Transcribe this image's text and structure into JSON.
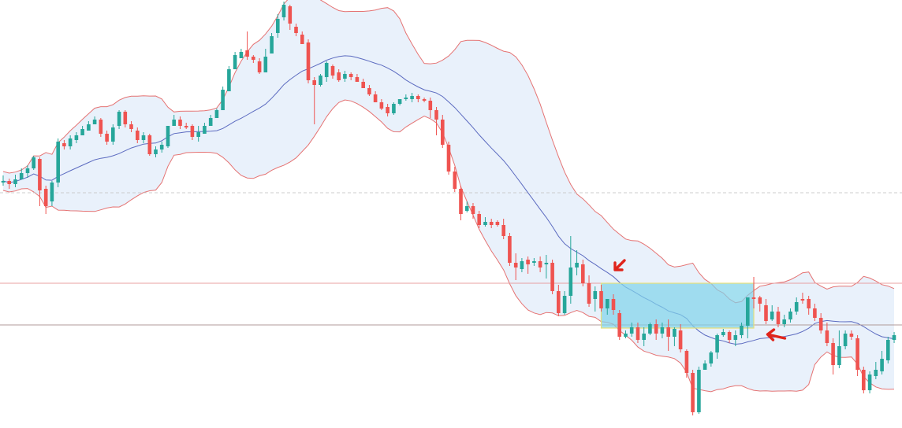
{
  "colors": {
    "bull": "#26a69a",
    "bear": "#ef5350",
    "band_fill": "#e3eefa",
    "band_line": "#e57373",
    "mid_line": "#5c6bc0",
    "zone_fill": "#7fd3ea",
    "zone_border": "#e6e07a",
    "arrow": "#e0241b",
    "hline_gray": "#cccccc",
    "hline_red": "#e8a0a0",
    "hline_dark": "#b09a9a"
  },
  "chart_data": {
    "type": "candlestick",
    "title": "",
    "xlabel": "",
    "ylabel": "",
    "ylim": [
      0,
      544
    ],
    "grid": false,
    "indicator": "bollinger_bands",
    "horizontal_levels": [
      {
        "value": 245,
        "color": "gray"
      },
      {
        "value": 360,
        "color": "red"
      },
      {
        "value": 413,
        "color": "dark"
      }
    ],
    "zone": {
      "x_start_bar": 98,
      "x_end_bar": 123,
      "top": 360,
      "bottom": 417
    },
    "arrows": [
      {
        "bar": 100,
        "value": 345,
        "direction": "down-left"
      },
      {
        "bar": 125,
        "value": 425,
        "direction": "left"
      }
    ],
    "bars": [
      [
        232,
        230,
        223,
        236
      ],
      [
        230,
        234,
        227,
        240
      ],
      [
        234,
        228,
        222,
        238
      ],
      [
        228,
        220,
        214,
        224
      ],
      [
        220,
        214,
        210,
        226
      ],
      [
        214,
        200,
        198,
        216
      ],
      [
        202,
        242,
        200,
        262
      ],
      [
        240,
        262,
        236,
        272
      ],
      [
        256,
        232,
        230,
        262
      ],
      [
        232,
        180,
        176,
        238
      ],
      [
        182,
        186,
        178,
        190
      ],
      [
        186,
        176,
        172,
        190
      ],
      [
        178,
        172,
        168,
        182
      ],
      [
        172,
        164,
        160,
        168
      ],
      [
        166,
        158,
        154,
        162
      ],
      [
        158,
        152,
        148,
        156
      ],
      [
        152,
        170,
        150,
        174
      ],
      [
        170,
        180,
        166,
        184
      ],
      [
        180,
        162,
        158,
        184
      ],
      [
        160,
        142,
        140,
        164
      ],
      [
        142,
        158,
        140,
        162
      ],
      [
        158,
        164,
        154,
        168
      ],
      [
        166,
        178,
        162,
        182
      ],
      [
        178,
        172,
        168,
        182
      ],
      [
        172,
        196,
        170,
        198
      ],
      [
        196,
        190,
        186,
        200
      ],
      [
        190,
        184,
        180,
        194
      ],
      [
        186,
        160,
        160,
        188
      ],
      [
        160,
        152,
        146,
        152
      ],
      [
        152,
        160,
        148,
        164
      ],
      [
        160,
        162,
        156,
        164
      ],
      [
        160,
        174,
        158,
        178
      ],
      [
        174,
        168,
        160,
        180
      ],
      [
        170,
        160,
        156,
        162
      ],
      [
        160,
        150,
        146,
        154
      ],
      [
        150,
        140,
        138,
        142
      ],
      [
        140,
        114,
        110,
        118
      ],
      [
        116,
        88,
        84,
        92
      ],
      [
        88,
        70,
        66,
        72
      ],
      [
        74,
        66,
        62,
        68
      ],
      [
        64,
        72,
        40,
        76
      ],
      [
        72,
        76,
        70,
        80
      ],
      [
        78,
        92,
        74,
        94
      ],
      [
        92,
        72,
        62,
        78
      ],
      [
        68,
        46,
        42,
        52
      ],
      [
        42,
        24,
        18,
        48
      ],
      [
        22,
        6,
        2,
        26
      ],
      [
        8,
        30,
        6,
        38
      ],
      [
        34,
        42,
        30,
        46
      ],
      [
        44,
        56,
        40,
        56
      ],
      [
        54,
        102,
        50,
        106
      ],
      [
        102,
        108,
        98,
        158
      ],
      [
        108,
        96,
        94,
        110
      ],
      [
        98,
        80,
        78,
        104
      ],
      [
        84,
        96,
        82,
        100
      ],
      [
        92,
        102,
        88,
        104
      ],
      [
        100,
        94,
        90,
        104
      ],
      [
        94,
        98,
        92,
        102
      ],
      [
        98,
        104,
        94,
        104
      ],
      [
        104,
        112,
        100,
        112
      ],
      [
        112,
        120,
        108,
        122
      ],
      [
        120,
        130,
        116,
        130
      ],
      [
        130,
        138,
        126,
        140
      ],
      [
        136,
        144,
        132,
        148
      ],
      [
        144,
        132,
        130,
        146
      ],
      [
        132,
        126,
        126,
        134
      ],
      [
        126,
        124,
        120,
        128
      ],
      [
        126,
        122,
        118,
        130
      ],
      [
        122,
        126,
        120,
        130
      ],
      [
        126,
        128,
        124,
        130
      ],
      [
        128,
        140,
        124,
        150
      ],
      [
        140,
        152,
        136,
        172
      ],
      [
        152,
        184,
        146,
        188
      ],
      [
        184,
        218,
        180,
        222
      ],
      [
        218,
        240,
        212,
        244
      ],
      [
        240,
        272,
        236,
        280
      ],
      [
        268,
        262,
        256,
        270
      ],
      [
        262,
        272,
        258,
        278
      ],
      [
        272,
        286,
        268,
        290
      ],
      [
        286,
        282,
        276,
        288
      ],
      [
        282,
        286,
        278,
        290
      ],
      [
        282,
        286,
        280,
        288
      ],
      [
        286,
        300,
        278,
        304
      ],
      [
        300,
        334,
        296,
        338
      ],
      [
        334,
        340,
        322,
        356
      ],
      [
        342,
        332,
        328,
        346
      ],
      [
        330,
        336,
        326,
        348
      ],
      [
        334,
        332,
        328,
        338
      ],
      [
        332,
        340,
        326,
        346
      ],
      [
        336,
        334,
        324,
        354
      ],
      [
        334,
        370,
        330,
        374
      ],
      [
        370,
        398,
        362,
        402
      ],
      [
        398,
        376,
        370,
        400
      ],
      [
        376,
        340,
        300,
        386
      ],
      [
        340,
        334,
        318,
        350
      ],
      [
        336,
        360,
        330,
        364
      ],
      [
        360,
        386,
        350,
        390
      ],
      [
        380,
        370,
        364,
        396
      ],
      [
        370,
        392,
        362,
        396
      ],
      [
        392,
        380,
        380,
        400
      ],
      [
        380,
        394,
        374,
        400
      ],
      [
        398,
        428,
        394,
        432
      ],
      [
        428,
        424,
        420,
        430
      ],
      [
        424,
        416,
        410,
        428
      ],
      [
        416,
        432,
        410,
        436
      ],
      [
        432,
        424,
        416,
        440
      ],
      [
        424,
        412,
        410,
        426
      ],
      [
        412,
        424,
        406,
        432
      ],
      [
        424,
        416,
        410,
        430
      ],
      [
        416,
        428,
        406,
        446
      ],
      [
        428,
        418,
        416,
        440
      ],
      [
        420,
        444,
        412,
        448
      ],
      [
        446,
        474,
        444,
        480
      ],
      [
        474,
        524,
        470,
        528
      ],
      [
        524,
        470,
        466,
        526
      ],
      [
        470,
        462,
        458,
        470
      ],
      [
        462,
        448,
        446,
        466
      ],
      [
        448,
        426,
        424,
        456
      ],
      [
        426,
        422,
        418,
        428
      ],
      [
        422,
        432,
        420,
        436
      ],
      [
        432,
        426,
        420,
        440
      ],
      [
        426,
        414,
        410,
        430
      ],
      [
        414,
        378,
        378,
        430
      ],
      [
        378,
        380,
        352,
        392
      ],
      [
        378,
        386,
        376,
        396
      ],
      [
        388,
        408,
        380,
        412
      ],
      [
        406,
        396,
        388,
        408
      ],
      [
        396,
        412,
        390,
        416
      ],
      [
        412,
        406,
        400,
        416
      ],
      [
        406,
        396,
        392,
        410
      ],
      [
        396,
        384,
        378,
        400
      ],
      [
        380,
        382,
        372,
        386
      ],
      [
        380,
        392,
        376,
        400
      ],
      [
        392,
        404,
        386,
        408
      ],
      [
        404,
        420,
        398,
        424
      ],
      [
        420,
        436,
        410,
        440
      ],
      [
        436,
        464,
        430,
        476
      ],
      [
        464,
        440,
        420,
        468
      ],
      [
        440,
        424,
        420,
        444
      ],
      [
        424,
        428,
        420,
        432
      ],
      [
        430,
        470,
        426,
        478
      ],
      [
        470,
        496,
        466,
        500
      ],
      [
        496,
        476,
        472,
        500
      ],
      [
        478,
        470,
        460,
        482
      ],
      [
        472,
        456,
        446,
        476
      ],
      [
        458,
        432,
        428,
        462
      ],
      [
        432,
        426,
        422,
        436
      ]
    ]
  }
}
